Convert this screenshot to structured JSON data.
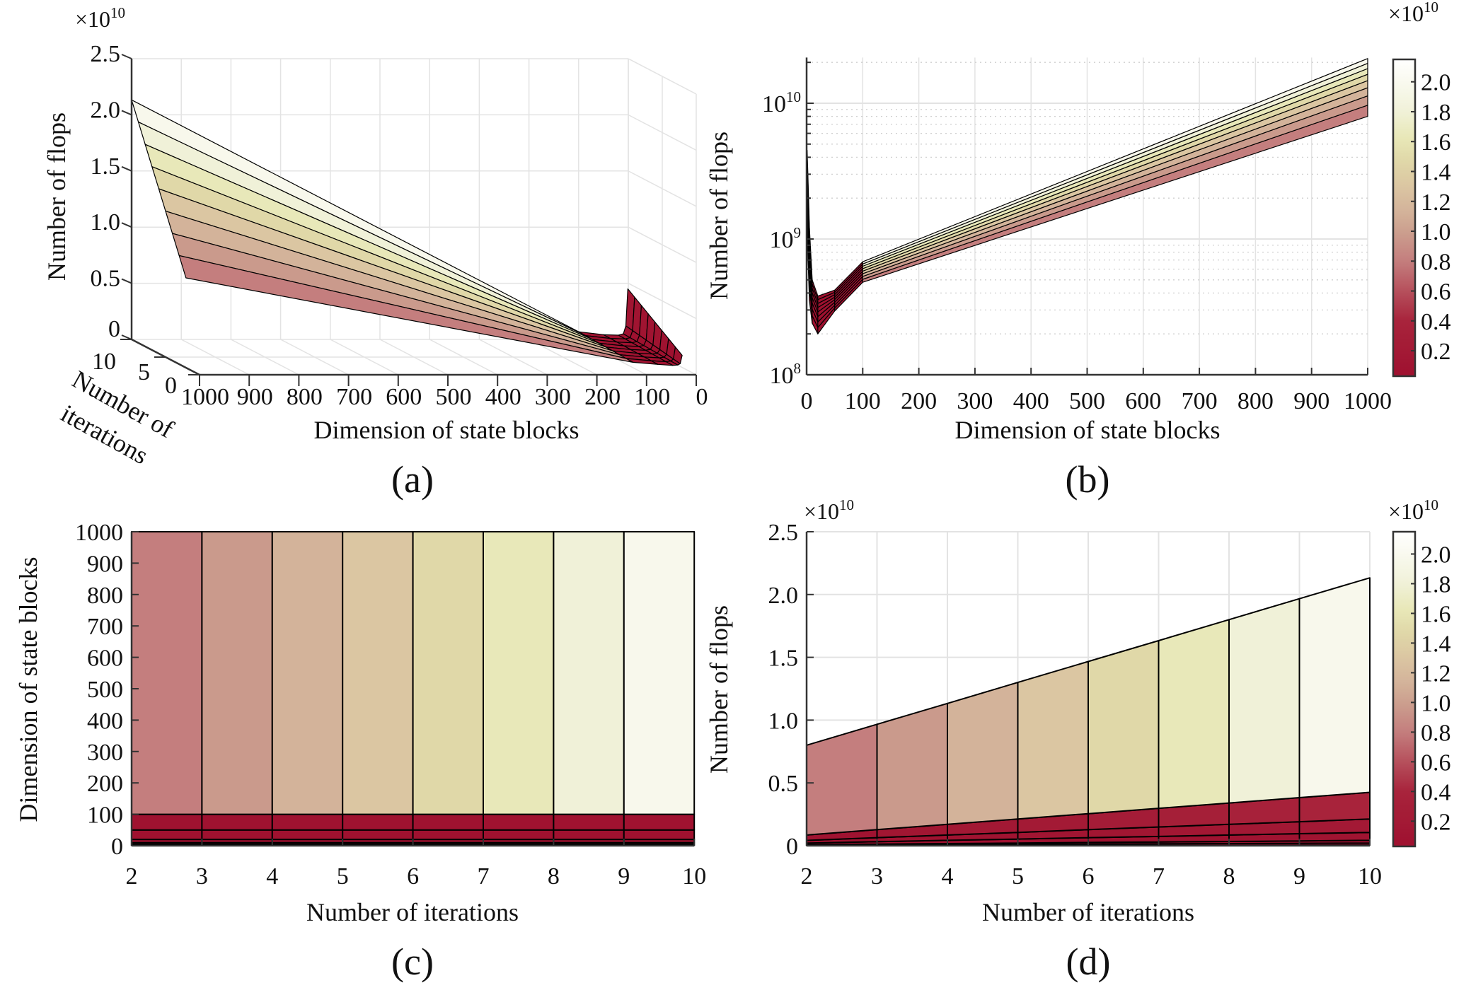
{
  "colors": {
    "axis": "#333333",
    "grid": "#e3e3e3",
    "edge": "#000000",
    "colormap": [
      {
        "value": 0.0,
        "color": "#9e0f2e"
      },
      {
        "value": 4000000000.0,
        "color": "#a8243c"
      },
      {
        "value": 6000000000.0,
        "color": "#b6505c"
      },
      {
        "value": 8000000000.0,
        "color": "#c47e7e"
      },
      {
        "value": 9600000000.0,
        "color": "#ca998b"
      },
      {
        "value": 11300000000.0,
        "color": "#d3b39a"
      },
      {
        "value": 13000000000.0,
        "color": "#dbc6a2"
      },
      {
        "value": 14700000000.0,
        "color": "#e0d8a8"
      },
      {
        "value": 16300000000.0,
        "color": "#e8e8b8"
      },
      {
        "value": 18000000000.0,
        "color": "#f0f1d8"
      },
      {
        "value": 19700000000.0,
        "color": "#f8f8ec"
      },
      {
        "value": 21500000000.0,
        "color": "#ffffff"
      }
    ]
  },
  "chart_data": [
    {
      "id": "a",
      "type": "surface3d",
      "panel_label": "(a)",
      "xlabel": "Dimension of state blocks",
      "ylabel_line1": "Number of",
      "ylabel_line2": "iterations",
      "zlabel": "Number of flops",
      "multiplier": {
        "base": "×10",
        "exp": "10"
      },
      "xlim": [
        0,
        1000
      ],
      "ylim": [
        0,
        10
      ],
      "zlim": [
        0,
        25000000000.0
      ],
      "x_reversed": true,
      "xticks": [
        "1000",
        "900",
        "800",
        "700",
        "600",
        "500",
        "400",
        "300",
        "200",
        "100",
        "0"
      ],
      "yticks": [
        "10",
        "5",
        "0"
      ],
      "zticks": [
        "0",
        "0.5",
        "1.0",
        "1.5",
        "2.0",
        "2.5"
      ],
      "grid": true,
      "data_ref": "flops"
    },
    {
      "id": "b",
      "type": "surface_xz_view",
      "panel_label": "(b)",
      "xlabel": "Dimension of state blocks",
      "ylabel": "Number of flops",
      "yscale": "log",
      "xlim": [
        0,
        1000
      ],
      "ylim": [
        100000000.0,
        21700000000.0
      ],
      "xticks": [
        "0",
        "100",
        "200",
        "300",
        "400",
        "500",
        "600",
        "700",
        "800",
        "900",
        "1000"
      ],
      "yticks": [
        {
          "base": "10",
          "exp": "8"
        },
        {
          "base": "10",
          "exp": "9"
        },
        {
          "base": "10",
          "exp": "10"
        }
      ],
      "grid": true,
      "colorbar": {
        "multiplier": {
          "base": "×10",
          "exp": "10"
        },
        "range": [
          300000000.0,
          21500000000.0
        ],
        "ticks": [
          "0.2",
          "0.4",
          "0.6",
          "0.8",
          "1.0",
          "1.2",
          "1.4",
          "1.6",
          "1.8",
          "2.0"
        ],
        "placement": "right"
      },
      "data_ref": "flops"
    },
    {
      "id": "c",
      "type": "surface_top_view",
      "panel_label": "(c)",
      "xlabel": "Number of iterations",
      "ylabel": "Dimension of state blocks",
      "xlim": [
        2,
        10
      ],
      "ylim": [
        0,
        1000
      ],
      "xticks": [
        "2",
        "3",
        "4",
        "5",
        "6",
        "7",
        "8",
        "9",
        "10"
      ],
      "yticks": [
        "0",
        "100",
        "200",
        "300",
        "400",
        "500",
        "600",
        "700",
        "800",
        "900",
        "1000"
      ],
      "grid": false,
      "data_ref": "flops"
    },
    {
      "id": "d",
      "type": "surface_yz_view",
      "panel_label": "(d)",
      "xlabel": "Number of iterations",
      "ylabel": "Number of flops",
      "multiplier": {
        "base": "×10",
        "exp": "10"
      },
      "xlim": [
        2,
        10
      ],
      "ylim": [
        0,
        25000000000.0
      ],
      "xticks": [
        "2",
        "3",
        "4",
        "5",
        "6",
        "7",
        "8",
        "9",
        "10"
      ],
      "yticks": [
        "0",
        "0.5",
        "1.0",
        "1.5",
        "2.0",
        "2.5"
      ],
      "grid": true,
      "colorbar": {
        "multiplier": {
          "base": "×10",
          "exp": "10"
        },
        "range": [
          300000000.0,
          21500000000.0
        ],
        "ticks": [
          "0.2",
          "0.4",
          "0.6",
          "0.8",
          "1.0",
          "1.2",
          "1.4",
          "1.6",
          "1.8",
          "2.0"
        ],
        "placement": "right"
      },
      "dimensions": [
        1,
        5,
        10,
        25,
        50,
        100,
        1000
      ],
      "iterations": [
        2,
        3,
        4,
        5,
        6,
        7,
        8,
        9,
        10
      ],
      "values_by_dimension": [
        [
          8500000.0,
          13000000.0,
          17000000.0,
          21000000.0,
          26000000.0,
          30000000.0,
          34000000.0,
          38000000.0,
          43000000.0
        ],
        [
          43000000.0,
          64000000.0,
          85000000.0,
          110000000.0,
          130000000.0,
          150000000.0,
          170000000.0,
          190000000.0,
          210000000.0
        ],
        [
          85000000.0,
          130000000.0,
          170000000.0,
          210000000.0,
          260000000.0,
          300000000.0,
          340000000.0,
          380000000.0,
          430000000.0
        ],
        [
          210000000.0,
          320000000.0,
          430000000.0,
          530000000.0,
          640000000.0,
          740000000.0,
          850000000.0,
          960000000.0,
          1060000000.0
        ],
        [
          425000000.0,
          640000000.0,
          850000000.0,
          1060000000.0,
          1280000000.0,
          1490000000.0,
          1700000000.0,
          1910000000.0,
          2130000000.0
        ],
        [
          850000000.0,
          1280000000.0,
          1700000000.0,
          2130000000.0,
          2550000000.0,
          2980000000.0,
          3400000000.0,
          3830000000.0,
          4250000000.0
        ],
        [
          8000000000.0,
          9670000000.0,
          11330000000.0,
          13000000000.0,
          14670000000.0,
          16330000000.0,
          18000000000.0,
          19670000000.0,
          21330000000.0
        ]
      ]
    }
  ],
  "flops": {
    "dimensions": [
      1,
      5,
      10,
      20,
      50,
      100,
      1000
    ],
    "iterations": [
      2,
      3,
      4,
      5,
      6,
      7,
      8,
      9,
      10
    ],
    "values_by_iteration": [
      [
        1100000000.0,
        350000000.0,
        240000000.0,
        200000000.0,
        295000000.0,
        480000000.0,
        8000000000.0
      ],
      [
        1525000000.0,
        456000000.0,
        273000000.0,
        223000000.0,
        311000000.0,
        505000000.0,
        9670000000.0
      ],
      [
        1950000000.0,
        563000000.0,
        305000000.0,
        245000000.0,
        326000000.0,
        530000000.0,
        11330000000.0
      ],
      [
        2375000000.0,
        669000000.0,
        338000000.0,
        268000000.0,
        342000000.0,
        555000000.0,
        13000000000.0
      ],
      [
        2800000000.0,
        775000000.0,
        370000000.0,
        290000000.0,
        358000000.0,
        580000000.0,
        14670000000.0
      ],
      [
        3225000000.0,
        881000000.0,
        403000000.0,
        313000000.0,
        373000000.0,
        605000000.0,
        16330000000.0
      ],
      [
        3650000000.0,
        988000000.0,
        435000000.0,
        335000000.0,
        389000000.0,
        630000000.0,
        18000000000.0
      ],
      [
        4075000000.0,
        1094000000.0,
        468000000.0,
        358000000.0,
        405000000.0,
        655000000.0,
        19670000000.0
      ],
      [
        4500000000.0,
        1200000000.0,
        500000000.0,
        380000000.0,
        420000000.0,
        680000000.0,
        21330000000.0
      ]
    ]
  }
}
